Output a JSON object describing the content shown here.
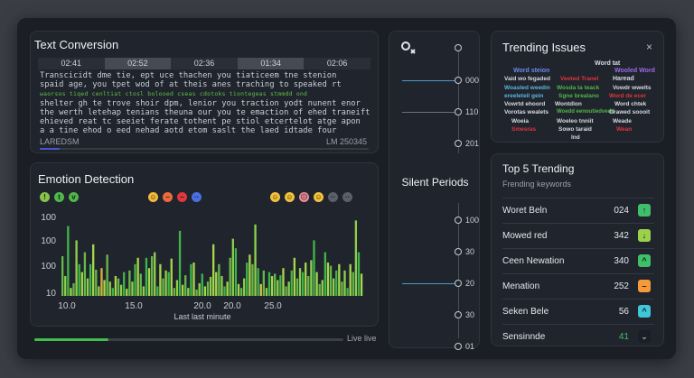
{
  "text_conversion": {
    "title": "Text Conversion",
    "timeline": [
      "02:41",
      "02:52",
      "02:36",
      "01:34",
      "02:06"
    ],
    "active_segments": [
      1,
      3
    ],
    "lines": [
      "Transcicidt dme tie, ept uce thachen you tiaticeem tne stenion",
      "spaid age, you tpet wod of at theis anes traching to speaked rt",
      "waorsos tiqed cenltiat ctosl bolooed cseas cdotoks tiontegeas stmmdd ond",
      "shelter gh te trove shoir dpm, lenior you traction yodt nunent enor",
      "the werth letehap tenians theuna our you te emaction of ehed traneift",
      "ehieved reat tc seeiet ferate tothent pe stiol etcertelot atge apon",
      "a a tine ehod o eed nehad aotd etom saslt the laed idtade four"
    ],
    "green_lines": [
      2
    ],
    "footer_left": "LAREDSM",
    "footer_right": "LM 250345",
    "progress": 0.06
  },
  "emotion": {
    "title": "Emotion Detection",
    "emojis_left": [
      {
        "icon": "tie-icon",
        "char": "!",
        "color": "#88c34a"
      },
      {
        "icon": "tie-icon",
        "char": "t",
        "color": "#4fb84a"
      },
      {
        "icon": "check-icon",
        "char": "v",
        "color": "#4fb84a"
      }
    ],
    "emojis_mid": [
      {
        "icon": "smile-icon",
        "char": "☺",
        "color": "#f5b93a"
      },
      {
        "icon": "angry-icon",
        "char": "–",
        "color": "#ef6a3a"
      },
      {
        "icon": "stop-icon",
        "char": "–",
        "color": "#e0363d"
      },
      {
        "icon": "dots-icon",
        "char": "··",
        "color": "#4a6fe0"
      }
    ],
    "emojis_right": [
      {
        "icon": "smile-icon",
        "char": "☺",
        "color": "#f4c23a"
      },
      {
        "icon": "smile-icon",
        "char": "☺",
        "color": "#f4c23a"
      },
      {
        "icon": "blush-icon",
        "char": "☹",
        "color": "#f08f9a"
      },
      {
        "icon": "neutral-icon",
        "char": "☺",
        "color": "#f4c23a"
      },
      {
        "icon": "dots-icon",
        "char": "··",
        "color": "#5a5f68"
      },
      {
        "icon": "dots-icon",
        "char": "··",
        "color": "#5a5f68"
      }
    ],
    "live_label": "Live live",
    "live_progress": 0.24
  },
  "chart_data": {
    "type": "bar",
    "xlabel": "Last last minute",
    "yticks": [
      "100",
      "100",
      "100",
      "10"
    ],
    "xticks": [
      "10.0",
      "15.0",
      "20.0",
      "20.0",
      "25.0"
    ],
    "ylim": [
      0,
      100
    ],
    "values": [
      50,
      25,
      88,
      10,
      16,
      70,
      40,
      30,
      55,
      22,
      40,
      65,
      33,
      12,
      35,
      20,
      52,
      18,
      10,
      25,
      22,
      14,
      30,
      9,
      32,
      18,
      40,
      48,
      28,
      12,
      48,
      35,
      50,
      55,
      12,
      40,
      22,
      32,
      30,
      47,
      10,
      20,
      82,
      14,
      26,
      10,
      40,
      42,
      8,
      16,
      28,
      12,
      18,
      24,
      65,
      30,
      40,
      25,
      12,
      18,
      48,
      72,
      60,
      15,
      10,
      22,
      42,
      52,
      40,
      90,
      35,
      15,
      32,
      10,
      30,
      25,
      28,
      20,
      26,
      35,
      12,
      18,
      32,
      48,
      22,
      35,
      30,
      42,
      25,
      45,
      70,
      30,
      15,
      20,
      55,
      42,
      38,
      22,
      32,
      40,
      18,
      32,
      10,
      40,
      30,
      95,
      55,
      28
    ],
    "colors": [
      "#66b84a",
      "#8ecf4c",
      "#3fb44a",
      "#a6d64c"
    ],
    "accent_indexes": {
      "14": "#d8b23a",
      "54": "#a6d64c",
      "71": "#e2c14a"
    }
  },
  "middle": {
    "top_nodes": [
      "000",
      "110",
      "201"
    ],
    "silent_title": "Silent Periods",
    "bottom_nodes": [
      "100",
      "30",
      "20",
      "30",
      "01"
    ]
  },
  "trending_issues": {
    "title": "Trending Issues",
    "close": "×",
    "words": [
      {
        "text": "Word tat",
        "color": "#d7dbe2"
      },
      {
        "text": "Word steion",
        "color": "#6a8cf0"
      },
      {
        "text": "Wooled Word",
        "color": "#9b6ae8"
      },
      {
        "text": "Vaid wo fegaded",
        "color": "#d7dbe2"
      },
      {
        "text": "Veoted Tranel",
        "color": "#e0363d"
      },
      {
        "text": "Haread",
        "color": "#d7dbe2"
      },
      {
        "text": "Woasted weedin",
        "color": "#5ab8e0"
      },
      {
        "text": "Wosda ta teack",
        "color": "#4fb84a"
      },
      {
        "text": "Vowdr wwelts",
        "color": "#d7dbe2"
      },
      {
        "text": "ereeleteil gein",
        "color": "#5ab8e0"
      },
      {
        "text": "Sgne brealano",
        "color": "#4fb84a"
      },
      {
        "text": "Word de ecer",
        "color": "#e0363d"
      },
      {
        "text": "Vowrtd ehoord",
        "color": "#d7dbe2"
      },
      {
        "text": "Wontdlon",
        "color": "#d7dbe2"
      },
      {
        "text": "Word chtek",
        "color": "#d7dbe2"
      },
      {
        "text": "Vorotas wealets",
        "color": "#d7dbe2"
      },
      {
        "text": "Woedd eenoutiedvedd",
        "color": "#4fb84a"
      },
      {
        "text": "Grawed soooit",
        "color": "#d7dbe2"
      },
      {
        "text": "Woeia",
        "color": "#d7dbe2"
      },
      {
        "text": "Woeleo tnniit",
        "color": "#d7dbe2"
      },
      {
        "text": "Weade",
        "color": "#d7dbe2"
      },
      {
        "text": "Smesras",
        "color": "#e0363d"
      },
      {
        "text": "Sowo taraid",
        "color": "#d7dbe2"
      },
      {
        "text": "Wean",
        "color": "#e0363d"
      },
      {
        "text": "lnd",
        "color": "#d7dbe2"
      }
    ]
  },
  "top5": {
    "title": "Top 5 Trending",
    "subtitle": "Frending keywords",
    "rows": [
      {
        "name": "Woret Beln",
        "value": "024",
        "badge": "↑",
        "badge_color": "#3fbf6a"
      },
      {
        "name": "Mowed red",
        "value": "342",
        "badge": "↓",
        "badge_color": "#9bd14a"
      },
      {
        "name": "Ceen Newation",
        "value": "340",
        "badge": "^",
        "badge_color": "#3fbf6a"
      },
      {
        "name": "Menation",
        "value": "252",
        "badge": "–",
        "badge_color": "#f59a3a"
      },
      {
        "name": "Seken Bele",
        "value": "56",
        "badge": "^",
        "badge_color": "#3fc6d9"
      },
      {
        "name": "Sensinnde",
        "value": "41",
        "badge": "⌄",
        "badge_color": "#1b1e25"
      }
    ]
  }
}
